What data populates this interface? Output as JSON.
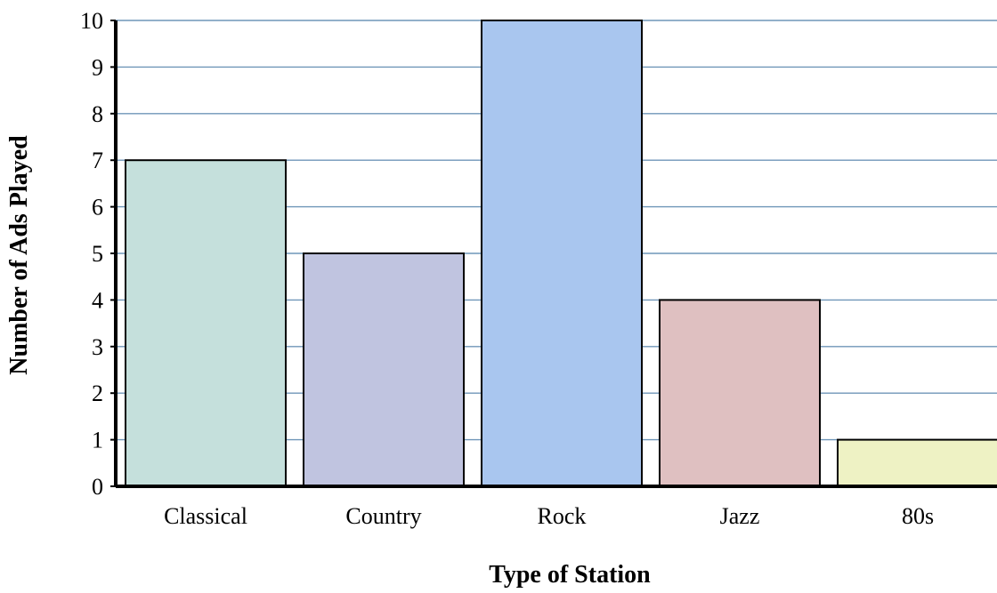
{
  "chart_data": {
    "type": "bar",
    "title": "",
    "xlabel": "Type of Station",
    "ylabel": "Number of Ads Played",
    "categories": [
      "Classical",
      "Country",
      "Rock",
      "Jazz",
      "80s"
    ],
    "values": [
      7,
      5,
      10,
      4,
      1
    ],
    "ylim": [
      0,
      10
    ],
    "yticks": [
      "0",
      "1",
      "2",
      "3",
      "4",
      "5",
      "6",
      "7",
      "8",
      "9",
      "10"
    ],
    "grid": true,
    "legend": "none",
    "colors": {
      "bars": [
        "#c5e0dc",
        "#c0c4e0",
        "#a9c6ef",
        "#dfc0c1",
        "#eef2c4"
      ],
      "grid": "#6f96b8",
      "axis": "#000000",
      "bar_outline": "#000000"
    }
  }
}
